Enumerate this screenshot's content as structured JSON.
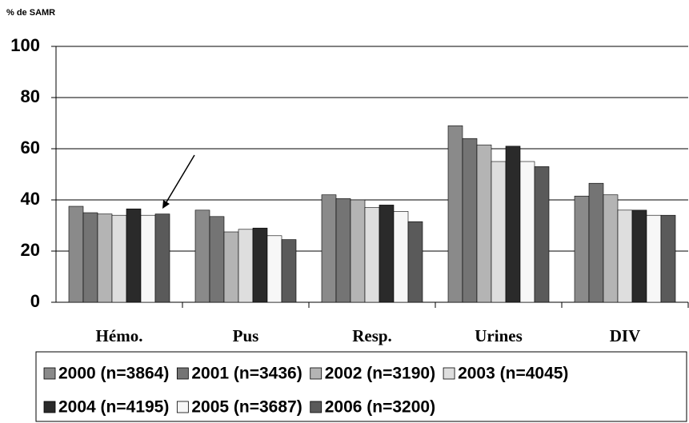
{
  "chart_data": {
    "type": "bar",
    "y_axis_label": "% de SAMR",
    "categories": [
      "Hémo.",
      "Pus",
      "Resp.",
      "Urines",
      "DIV"
    ],
    "series": [
      {
        "name": "2000 (n=3864)",
        "color": "#8a8a8a",
        "values": [
          37.5,
          36,
          42,
          69,
          41.5
        ]
      },
      {
        "name": "2001 (n=3436)",
        "color": "#747474",
        "values": [
          35,
          33.5,
          40.5,
          64,
          46.5
        ]
      },
      {
        "name": "2002 (n=3190)",
        "color": "#b4b4b4",
        "values": [
          34.5,
          27.5,
          40,
          61.5,
          42
        ]
      },
      {
        "name": "2003 (n=4045)",
        "color": "#dedede",
        "values": [
          34,
          28.5,
          37,
          55,
          36
        ]
      },
      {
        "name": "2004 (n=4195)",
        "color": "#2a2a2a",
        "values": [
          36.5,
          29,
          38,
          61,
          36
        ]
      },
      {
        "name": "2005 (n=3687)",
        "color": "#f7f7f7",
        "values": [
          34,
          26,
          35.5,
          55,
          34
        ]
      },
      {
        "name": "2006 (n=3200)",
        "color": "#5a5a5a",
        "values": [
          34.5,
          24.5,
          31.5,
          53,
          34
        ]
      }
    ],
    "ylim": [
      0,
      100
    ],
    "yticks": [
      0,
      20,
      40,
      60,
      80,
      100
    ],
    "grid": true
  }
}
